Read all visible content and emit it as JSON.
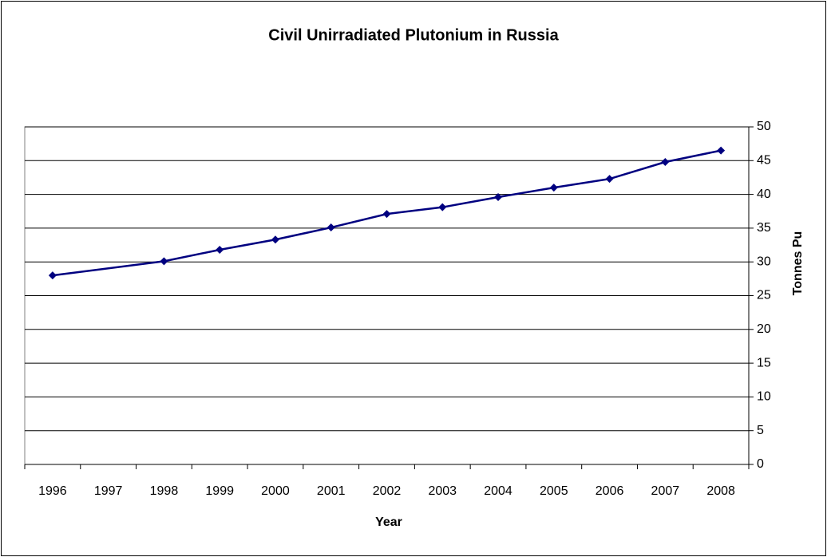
{
  "chart_data": {
    "type": "line",
    "title": "Civil Unirradiated Plutonium in Russia",
    "x_label": "Year",
    "y_label": "Tonnes Pu",
    "categories": [
      "1996",
      "1997",
      "1998",
      "1999",
      "2000",
      "2001",
      "2002",
      "2003",
      "2004",
      "2005",
      "2006",
      "2007",
      "2008"
    ],
    "series": [
      {
        "name": "Tonnes Pu",
        "color": "#000080",
        "values": [
          28.0,
          null,
          30.1,
          31.8,
          33.3,
          35.1,
          37.1,
          38.1,
          39.6,
          41.0,
          42.3,
          44.8,
          46.5
        ]
      }
    ],
    "ylim": [
      0,
      50
    ],
    "yticks": [
      0,
      5,
      10,
      15,
      20,
      25,
      30,
      35,
      40,
      45,
      50
    ],
    "y_axis_side": "right",
    "grid": true,
    "connect_gaps": true,
    "legend": false
  }
}
